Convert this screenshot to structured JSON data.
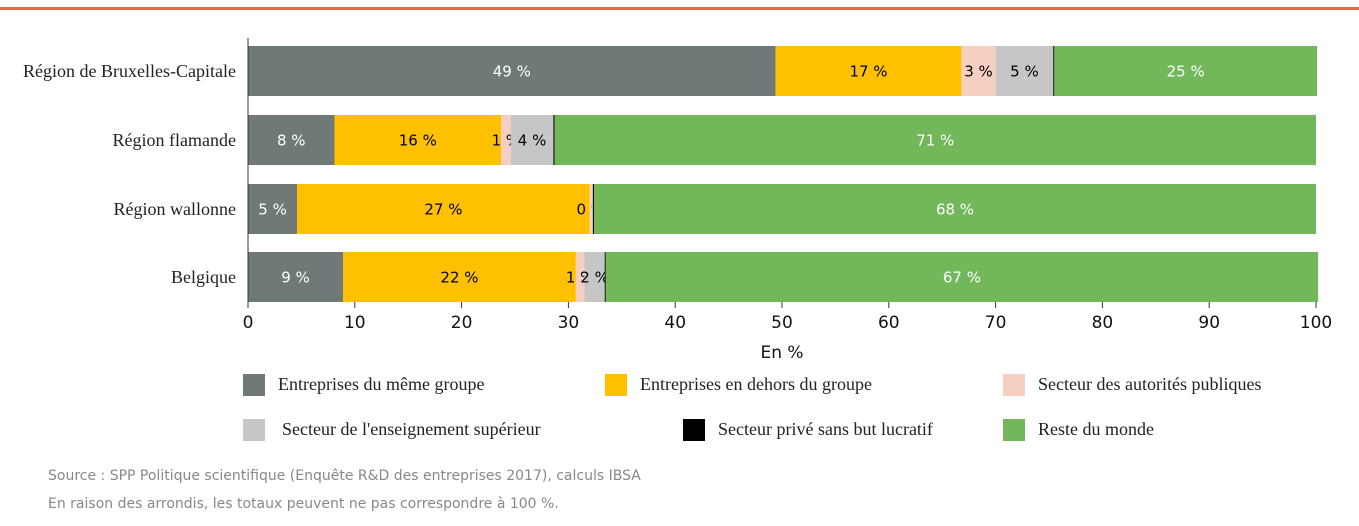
{
  "chart_data": {
    "type": "stacked_barh",
    "categories": [
      "Région de Bruxelles-Capitale",
      "Région flamande",
      "Région wallonne",
      "Belgique"
    ],
    "series": [
      {
        "name": "Entreprises du même groupe",
        "color": "#6f7a78",
        "label_color": "#ffffff",
        "values": [
          49.4,
          8.1,
          4.6,
          8.9
        ],
        "value_labels": [
          "49 %",
          "8 %",
          "5 %",
          "9 %"
        ]
      },
      {
        "name": "Entreprises en dehors du groupe",
        "color": "#ffc000",
        "label_color": "#000000",
        "values": [
          17.4,
          15.6,
          27.4,
          21.8
        ],
        "value_labels": [
          "17 %",
          "16 %",
          "27 %",
          "22 %"
        ]
      },
      {
        "name": "Secteur des autorités publiques",
        "color": "#f6cfc2",
        "label_color": "#000000",
        "values": [
          3.2,
          0.9,
          0.2,
          0.8
        ],
        "value_labels": [
          "3 %",
          "1 %",
          "0 %",
          "1 %"
        ]
      },
      {
        "name": "Secteur de l'enseignement supérieur",
        "color": "#c6c6c6",
        "label_color": "#000000",
        "values": [
          5.4,
          4.0,
          0.1,
          1.9
        ],
        "value_labels": [
          "5 %",
          "4 %",
          null,
          "2 %"
        ]
      },
      {
        "name": "Secteur privé sans but lucratif",
        "color": "#000000",
        "label_color": "#000000",
        "values": [
          0.1,
          0.1,
          0.1,
          0.1
        ],
        "value_labels": [
          null,
          null,
          null,
          null
        ]
      },
      {
        "name": "Reste du monde",
        "color": "#72b85a",
        "label_color": "#ffffff",
        "values": [
          24.6,
          71.3,
          67.6,
          66.7
        ],
        "value_labels": [
          "25 %",
          "71 %",
          "68 %",
          "67 %"
        ]
      }
    ],
    "xlabel": "En %",
    "xlim": [
      0,
      100
    ],
    "xticks": [
      0,
      10,
      20,
      30,
      40,
      50,
      60,
      70,
      80,
      90,
      100
    ],
    "grid": false,
    "notes": [
      "Source : SPP Politique scientifique (Enquête R&D des entreprises 2017), calculs IBSA",
      "En raison des arrondis, les totaux peuvent ne pas correspondre à 100 %."
    ]
  }
}
